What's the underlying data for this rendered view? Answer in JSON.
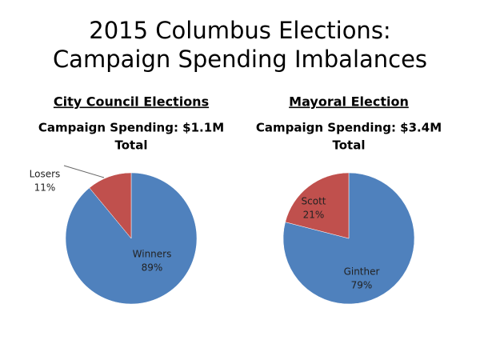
{
  "title": [
    "2015 Columbus Elections:",
    "Campaign Spending Imbalances"
  ],
  "chart_data": [
    {
      "type": "pie",
      "heading": "City Council Elections",
      "subtitle": [
        "Campaign Spending: $1.1M",
        "Total"
      ],
      "categories": [
        "Winners",
        "Losers"
      ],
      "values": [
        89,
        11
      ],
      "value_labels": [
        "89%",
        "11%"
      ],
      "colors": [
        "#4f81bd",
        "#c0504d"
      ]
    },
    {
      "type": "pie",
      "heading": "Mayoral Election",
      "subtitle": [
        "Campaign Spending: $3.4M",
        "Total"
      ],
      "categories": [
        "Ginther",
        "Scott"
      ],
      "values": [
        79,
        21
      ],
      "value_labels": [
        "79%",
        "21%"
      ],
      "colors": [
        "#4f81bd",
        "#c0504d"
      ]
    }
  ]
}
